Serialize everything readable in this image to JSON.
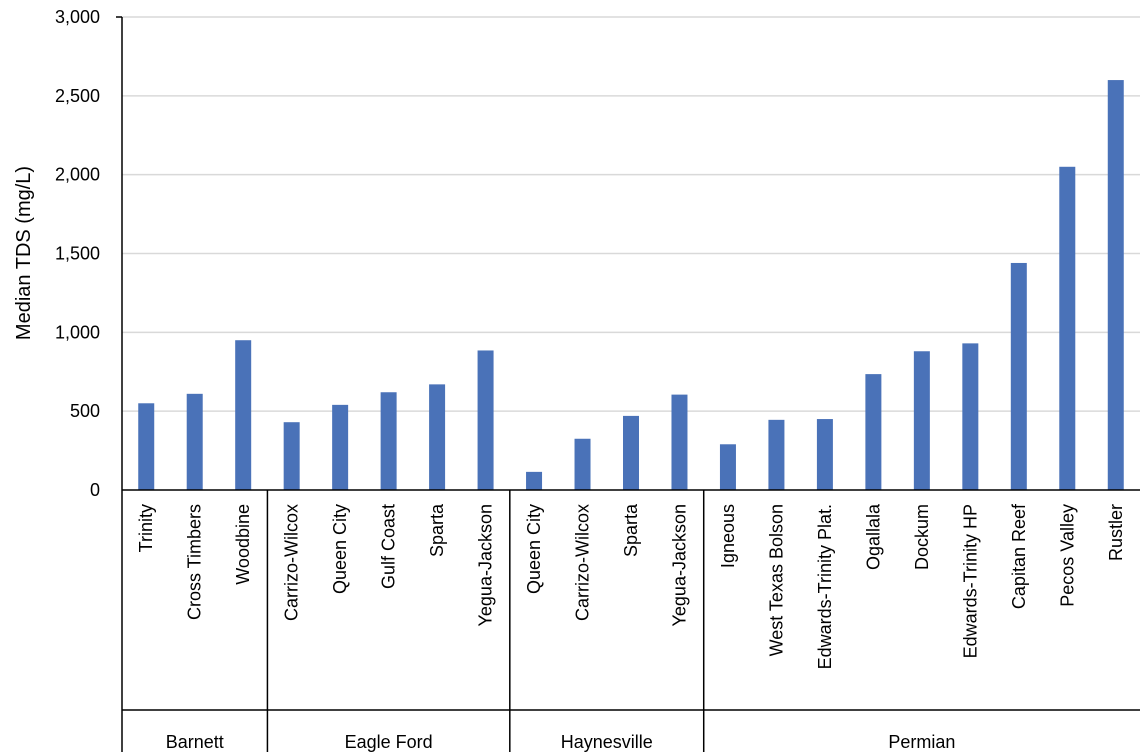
{
  "chart_data": {
    "type": "bar",
    "title": "",
    "xlabel": "",
    "ylabel": "Median TDS (mg/L)",
    "ylim": [
      0,
      3000
    ],
    "yticks": [
      0,
      500,
      1000,
      1500,
      2000,
      2500,
      3000
    ],
    "ytick_labels": [
      "0",
      "500",
      "1,000",
      "1,500",
      "2,000",
      "2,500",
      "3,000"
    ],
    "grid": true,
    "legend": "none",
    "bar_color": "#4a72b8",
    "groups": [
      {
        "name": "Barnett",
        "categories": [
          "Trinity",
          "Cross Timbers",
          "Woodbine"
        ],
        "values": [
          550,
          610,
          950
        ]
      },
      {
        "name": "Eagle Ford",
        "categories": [
          "Carrizo-Wilcox",
          "Queen City",
          "Gulf Coast",
          "Sparta",
          "Yegua-Jackson"
        ],
        "values": [
          430,
          540,
          620,
          670,
          885
        ]
      },
      {
        "name": "Haynesville",
        "categories": [
          "Queen City",
          "Carrizo-Wilcox",
          "Sparta",
          "Yegua-Jackson"
        ],
        "values": [
          115,
          325,
          470,
          605
        ]
      },
      {
        "name": "Permian",
        "categories": [
          "Igneous",
          "West Texas Bolson",
          "Edwards-Trinity Plat.",
          "Ogallala",
          "Dockum",
          "Edwards-Trinity HP",
          "Capitan Reef",
          "Pecos Valley",
          "Rustler"
        ],
        "values": [
          290,
          445,
          450,
          735,
          880,
          930,
          1440,
          2050,
          2600
        ]
      }
    ]
  }
}
